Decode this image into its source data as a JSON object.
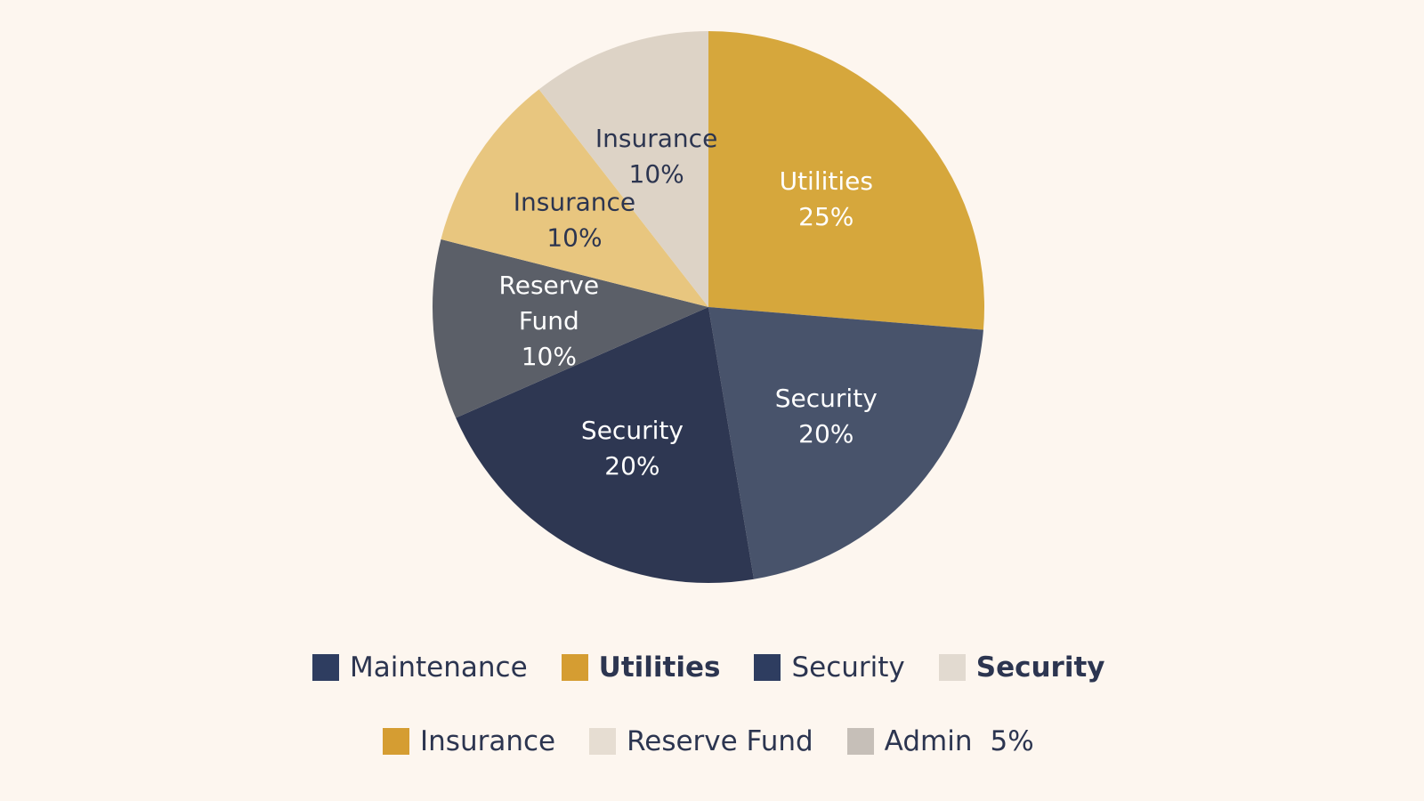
{
  "chart_data": {
    "type": "pie",
    "title": "",
    "slices": [
      {
        "label": "Utilities",
        "value": 25,
        "value_label": "25%",
        "color": "#d6a73c",
        "label_color": "#ffffff"
      },
      {
        "label": "Security",
        "value": 20,
        "value_label": "20%",
        "color": "#48536b",
        "label_color": "#ffffff"
      },
      {
        "label": "Security",
        "value": 20,
        "value_label": "20%",
        "color": "#2e3752",
        "label_color": "#ffffff"
      },
      {
        "label": "Reserve Fund",
        "value": 10,
        "value_label": "10%",
        "color": "#5b5f68",
        "label_color": "#ffffff"
      },
      {
        "label": "Insurance",
        "value": 10,
        "value_label": "10%",
        "color": "#e8c67f",
        "label_color": "#2c3550"
      },
      {
        "label": "Insurance",
        "value": 10,
        "value_label": "10%",
        "color": "#ddd3c6",
        "label_color": "#2c3550"
      }
    ],
    "legend": {
      "placement": "bottom",
      "rows": [
        [
          {
            "label": "Maintenance",
            "color": "#2e3d60",
            "bold": false
          },
          {
            "label": "Utilities",
            "color": "#d59d32",
            "bold": true
          },
          {
            "label": "Security",
            "color": "#2e3d60",
            "bold": false
          },
          {
            "label": "Security",
            "color": "#e2dad0",
            "bold": true
          }
        ],
        [
          {
            "label": "Insurance",
            "color": "#d59d32",
            "bold": false
          },
          {
            "label": "Reserve Fund",
            "color": "#e6ddd2",
            "bold": false
          },
          {
            "label": "Admin",
            "value_label": "5%",
            "color": "#c6bfb8",
            "bold": false
          }
        ]
      ]
    }
  }
}
